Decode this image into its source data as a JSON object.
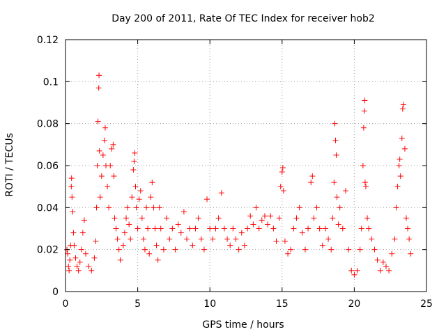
{
  "chart_data": {
    "type": "scatter",
    "title": "Day 200 of 2011, Rate Of TEC Index for receiver hob2",
    "xlabel": "GPS time / hours",
    "ylabel": "ROTI / TECUs",
    "xlim": [
      0,
      25
    ],
    "ylim": [
      0,
      0.12
    ],
    "x_ticks": [
      0,
      5,
      10,
      15,
      20,
      25
    ],
    "x_tick_labels": [
      "0",
      "5",
      "10",
      "15",
      "20",
      "25"
    ],
    "y_ticks": [
      0,
      0.02,
      0.04,
      0.06,
      0.08,
      0.1,
      0.12
    ],
    "y_tick_labels": [
      "0",
      "0.02",
      "0.04",
      "0.06",
      "0.08",
      "0.1",
      "0.12"
    ],
    "grid": true,
    "marker": "plus",
    "marker_color": "#ff0000",
    "series": [
      {
        "points": [
          [
            0.1,
            0.02
          ],
          [
            0.15,
            0.018
          ],
          [
            0.2,
            0.012
          ],
          [
            0.25,
            0.01
          ],
          [
            0.3,
            0.015
          ],
          [
            0.35,
            0.022
          ],
          [
            0.4,
            0.05
          ],
          [
            0.42,
            0.054
          ],
          [
            0.45,
            0.045
          ],
          [
            0.5,
            0.038
          ],
          [
            0.55,
            0.028
          ],
          [
            0.6,
            0.022
          ],
          [
            0.7,
            0.016
          ],
          [
            0.8,
            0.012
          ],
          [
            0.9,
            0.01
          ],
          [
            1.0,
            0.014
          ],
          [
            1.1,
            0.02
          ],
          [
            1.2,
            0.028
          ],
          [
            1.3,
            0.034
          ],
          [
            1.4,
            0.018
          ],
          [
            1.6,
            0.012
          ],
          [
            1.8,
            0.01
          ],
          [
            2.0,
            0.016
          ],
          [
            2.1,
            0.024
          ],
          [
            2.15,
            0.04
          ],
          [
            2.2,
            0.06
          ],
          [
            2.25,
            0.081
          ],
          [
            2.3,
            0.097
          ],
          [
            2.32,
            0.103
          ],
          [
            2.35,
            0.067
          ],
          [
            2.4,
            0.045
          ],
          [
            2.5,
            0.055
          ],
          [
            2.6,
            0.065
          ],
          [
            2.7,
            0.072
          ],
          [
            2.75,
            0.078
          ],
          [
            2.8,
            0.06
          ],
          [
            2.9,
            0.05
          ],
          [
            3.0,
            0.04
          ],
          [
            3.1,
            0.06
          ],
          [
            3.2,
            0.068
          ],
          [
            3.3,
            0.07
          ],
          [
            3.35,
            0.055
          ],
          [
            3.4,
            0.035
          ],
          [
            3.5,
            0.03
          ],
          [
            3.6,
            0.025
          ],
          [
            3.7,
            0.02
          ],
          [
            3.8,
            0.015
          ],
          [
            4.0,
            0.022
          ],
          [
            4.1,
            0.028
          ],
          [
            4.2,
            0.035
          ],
          [
            4.3,
            0.04
          ],
          [
            4.4,
            0.032
          ],
          [
            4.5,
            0.025
          ],
          [
            4.6,
            0.045
          ],
          [
            4.7,
            0.058
          ],
          [
            4.75,
            0.062
          ],
          [
            4.8,
            0.066
          ],
          [
            4.85,
            0.05
          ],
          [
            4.9,
            0.04
          ],
          [
            5.0,
            0.03
          ],
          [
            5.1,
            0.044
          ],
          [
            5.2,
            0.048
          ],
          [
            5.3,
            0.035
          ],
          [
            5.4,
            0.025
          ],
          [
            5.5,
            0.02
          ],
          [
            5.6,
            0.04
          ],
          [
            5.7,
            0.03
          ],
          [
            5.8,
            0.018
          ],
          [
            5.9,
            0.045
          ],
          [
            6.0,
            0.052
          ],
          [
            6.1,
            0.04
          ],
          [
            6.2,
            0.03
          ],
          [
            6.3,
            0.022
          ],
          [
            6.4,
            0.015
          ],
          [
            6.5,
            0.04
          ],
          [
            6.6,
            0.03
          ],
          [
            6.8,
            0.02
          ],
          [
            7.0,
            0.035
          ],
          [
            7.2,
            0.025
          ],
          [
            7.4,
            0.03
          ],
          [
            7.6,
            0.02
          ],
          [
            7.8,
            0.032
          ],
          [
            8.0,
            0.028
          ],
          [
            8.2,
            0.038
          ],
          [
            8.4,
            0.025
          ],
          [
            8.6,
            0.03
          ],
          [
            8.8,
            0.022
          ],
          [
            9.0,
            0.03
          ],
          [
            9.2,
            0.035
          ],
          [
            9.4,
            0.025
          ],
          [
            9.6,
            0.02
          ],
          [
            9.8,
            0.044
          ],
          [
            10.0,
            0.03
          ],
          [
            10.2,
            0.025
          ],
          [
            10.4,
            0.03
          ],
          [
            10.6,
            0.035
          ],
          [
            10.8,
            0.047
          ],
          [
            11.0,
            0.03
          ],
          [
            11.2,
            0.025
          ],
          [
            11.4,
            0.022
          ],
          [
            11.6,
            0.03
          ],
          [
            11.8,
            0.025
          ],
          [
            12.0,
            0.02
          ],
          [
            12.2,
            0.028
          ],
          [
            12.4,
            0.022
          ],
          [
            12.6,
            0.03
          ],
          [
            12.8,
            0.036
          ],
          [
            13.0,
            0.032
          ],
          [
            13.2,
            0.04
          ],
          [
            13.4,
            0.03
          ],
          [
            13.6,
            0.034
          ],
          [
            13.8,
            0.036
          ],
          [
            14.0,
            0.032
          ],
          [
            14.2,
            0.036
          ],
          [
            14.4,
            0.03
          ],
          [
            14.6,
            0.024
          ],
          [
            14.8,
            0.035
          ],
          [
            14.9,
            0.05
          ],
          [
            15.0,
            0.057
          ],
          [
            15.05,
            0.059
          ],
          [
            15.1,
            0.048
          ],
          [
            15.2,
            0.024
          ],
          [
            15.4,
            0.018
          ],
          [
            15.6,
            0.02
          ],
          [
            15.8,
            0.03
          ],
          [
            16.0,
            0.035
          ],
          [
            16.2,
            0.04
          ],
          [
            16.4,
            0.028
          ],
          [
            16.6,
            0.02
          ],
          [
            16.8,
            0.03
          ],
          [
            17.0,
            0.052
          ],
          [
            17.1,
            0.055
          ],
          [
            17.2,
            0.035
          ],
          [
            17.4,
            0.04
          ],
          [
            17.6,
            0.03
          ],
          [
            17.8,
            0.022
          ],
          [
            18.0,
            0.03
          ],
          [
            18.2,
            0.025
          ],
          [
            18.4,
            0.02
          ],
          [
            18.5,
            0.035
          ],
          [
            18.6,
            0.052
          ],
          [
            18.65,
            0.08
          ],
          [
            18.7,
            0.072
          ],
          [
            18.75,
            0.065
          ],
          [
            18.8,
            0.045
          ],
          [
            18.9,
            0.032
          ],
          [
            19.0,
            0.04
          ],
          [
            19.2,
            0.03
          ],
          [
            19.4,
            0.048
          ],
          [
            19.6,
            0.02
          ],
          [
            19.8,
            0.01
          ],
          [
            20.0,
            0.008
          ],
          [
            20.2,
            0.01
          ],
          [
            20.4,
            0.02
          ],
          [
            20.5,
            0.03
          ],
          [
            20.6,
            0.06
          ],
          [
            20.65,
            0.078
          ],
          [
            20.7,
            0.086
          ],
          [
            20.72,
            0.091
          ],
          [
            20.75,
            0.052
          ],
          [
            20.8,
            0.05
          ],
          [
            20.9,
            0.035
          ],
          [
            21.0,
            0.03
          ],
          [
            21.2,
            0.025
          ],
          [
            21.4,
            0.02
          ],
          [
            21.6,
            0.015
          ],
          [
            21.8,
            0.01
          ],
          [
            22.0,
            0.014
          ],
          [
            22.2,
            0.012
          ],
          [
            22.4,
            0.01
          ],
          [
            22.6,
            0.018
          ],
          [
            22.8,
            0.025
          ],
          [
            22.9,
            0.04
          ],
          [
            23.0,
            0.05
          ],
          [
            23.1,
            0.06
          ],
          [
            23.15,
            0.063
          ],
          [
            23.2,
            0.055
          ],
          [
            23.3,
            0.073
          ],
          [
            23.35,
            0.087
          ],
          [
            23.4,
            0.089
          ],
          [
            23.5,
            0.068
          ],
          [
            23.6,
            0.035
          ],
          [
            23.7,
            0.03
          ],
          [
            23.8,
            0.025
          ],
          [
            23.9,
            0.018
          ]
        ]
      }
    ]
  }
}
